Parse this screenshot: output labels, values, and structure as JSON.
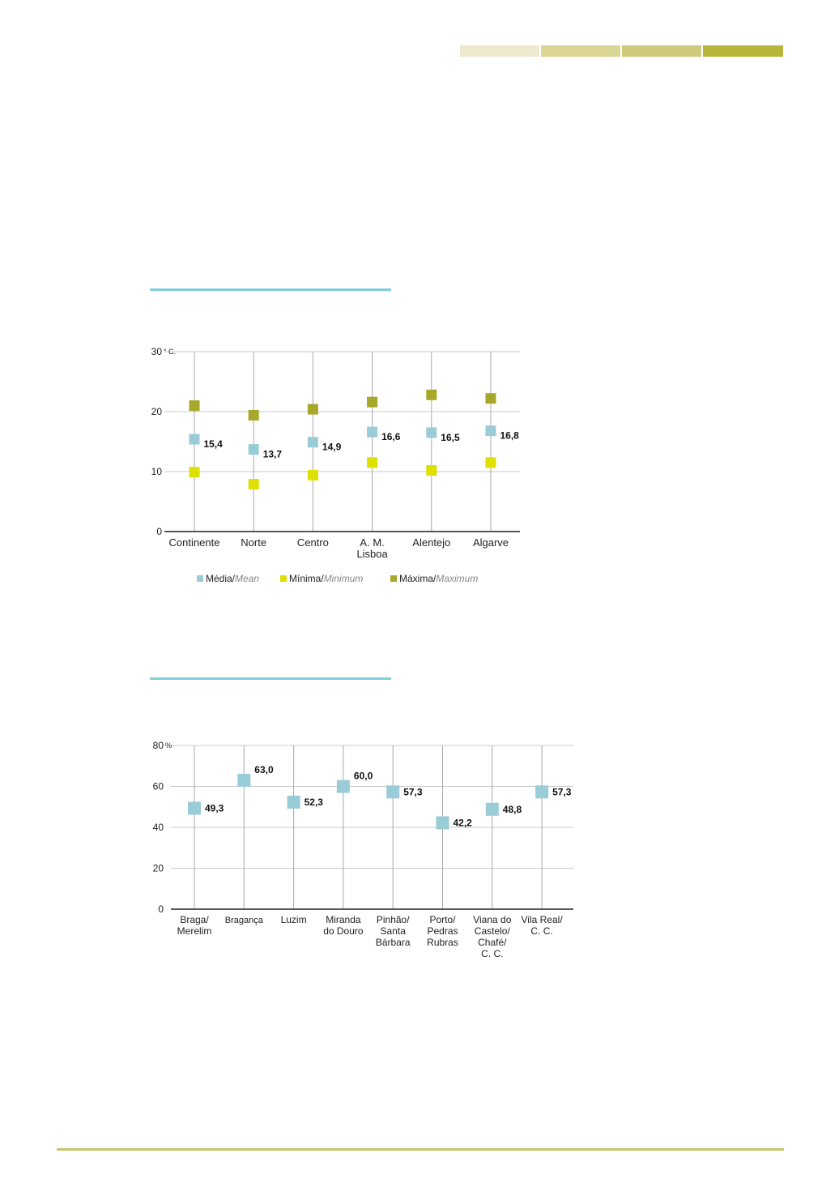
{
  "header": {
    "segments": [
      "#efe9cf",
      "#dad595",
      "#cfc97a",
      "#b8b63a"
    ]
  },
  "chart_data": [
    {
      "type": "scatter",
      "title": "",
      "y_unit": "° C.",
      "ylim": [
        0,
        30
      ],
      "yticks": [
        "0",
        "10",
        "20",
        "30"
      ],
      "grid": true,
      "legend_position": "bottom",
      "categories": [
        [
          "Continente"
        ],
        [
          "Norte"
        ],
        [
          "Centro"
        ],
        [
          "A. M.",
          "Lisboa"
        ],
        [
          "Alentejo"
        ],
        [
          "Algarve"
        ]
      ],
      "series": [
        {
          "name": "Média/",
          "name_en": "Mean",
          "color": "#99ccd6",
          "values": [
            15.4,
            13.7,
            14.9,
            16.6,
            16.5,
            16.8
          ],
          "labels": [
            "15,4",
            "13,7",
            "14,9",
            "16,6",
            "16,5",
            "16,8"
          ]
        },
        {
          "name": "Mínima/",
          "name_en": "Minimum",
          "color": "#dde000",
          "values": [
            9.9,
            7.9,
            9.4,
            11.5,
            10.2,
            11.5
          ]
        },
        {
          "name": "Máxima/",
          "name_en": "Maximum",
          "color": "#a7a72a",
          "values": [
            21.0,
            19.4,
            20.4,
            21.6,
            22.8,
            22.2
          ]
        }
      ]
    },
    {
      "type": "scatter",
      "title": "",
      "y_unit": "%",
      "ylim": [
        0,
        80
      ],
      "yticks": [
        "0",
        "20",
        "40",
        "60",
        "80"
      ],
      "grid": true,
      "categories": [
        [
          "Braga/",
          "Merelim"
        ],
        [
          "Bragança"
        ],
        [
          "Luzim"
        ],
        [
          "Miranda",
          "do Douro"
        ],
        [
          "Pinhão/",
          "Santa",
          "Bárbara"
        ],
        [
          "Porto/",
          "Pedras",
          "Rubras"
        ],
        [
          "Viana do",
          "Castelo/",
          "Chafé/",
          "C. C."
        ],
        [
          "Vila Real/",
          "C. C."
        ]
      ],
      "series": [
        {
          "color": "#99ccd6",
          "values": [
            49.3,
            63.0,
            52.3,
            60.0,
            57.3,
            42.2,
            48.8,
            57.3
          ],
          "labels": [
            "49,3",
            "63,0",
            "52,3",
            "60,0",
            "57,3",
            "42,2",
            "48,8",
            "57,3"
          ]
        }
      ]
    }
  ]
}
